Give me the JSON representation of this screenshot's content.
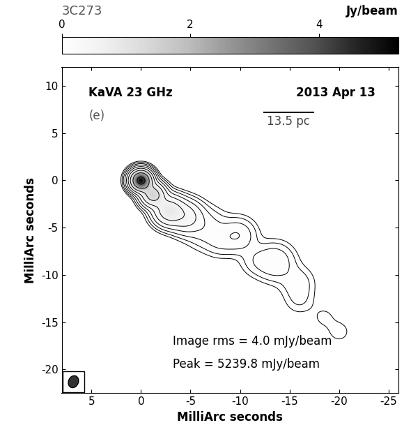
{
  "chart_data": {
    "type": "contour",
    "title": "3C273",
    "colorbar_label": "Jy/beam",
    "clim": [
      0,
      5.2398
    ],
    "cticks": [
      0,
      2,
      4
    ],
    "xlabel": "MilliArc seconds",
    "ylabel": "MilliArc seconds",
    "xlim": [
      8,
      -26
    ],
    "ylim": [
      -22.5,
      12
    ],
    "xticks": [
      5,
      0,
      -5,
      -10,
      -15,
      -20,
      -25
    ],
    "yticks": [
      10,
      5,
      0,
      -5,
      -10,
      -15,
      -20
    ],
    "annotations": [
      "KaVA 23 GHz",
      "(e)",
      "2013 Apr 13",
      "Image rms = 4.0 mJy/beam",
      "Peak = 5239.8 mJy/beam"
    ],
    "scale_bar": {
      "label": "13.5 pc",
      "length": 5
    },
    "beam": {
      "major": 1.3,
      "minor": 1.0,
      "pa": 20
    },
    "contour_levels": [
      0.016,
      0.032,
      0.064,
      0.128,
      0.256,
      0.512,
      1.024,
      2.048,
      4.096
    ],
    "components": [
      {
        "x": 0,
        "y": 0,
        "flux": 5.0,
        "sigma": 0.6
      },
      {
        "x": -1.2,
        "y": -1.5,
        "flux": 1.4,
        "sigma": 0.7
      },
      {
        "x": -2.8,
        "y": -3.2,
        "flux": 0.8,
        "sigma": 0.9
      },
      {
        "x": -4.5,
        "y": -3.8,
        "flux": 0.35,
        "sigma": 1.0
      },
      {
        "x": -6.5,
        "y": -5.0,
        "flux": 0.09,
        "sigma": 1.3
      },
      {
        "x": -8.0,
        "y": -6.5,
        "flux": 0.05,
        "sigma": 1.0
      },
      {
        "x": -9.8,
        "y": -5.8,
        "flux": 0.12,
        "sigma": 1.1
      },
      {
        "x": -11.5,
        "y": -8.5,
        "flux": 0.04,
        "sigma": 1.0
      },
      {
        "x": -13.5,
        "y": -8.6,
        "flux": 0.12,
        "sigma": 1.2
      },
      {
        "x": -15.8,
        "y": -10.8,
        "flux": 0.05,
        "sigma": 1.1
      },
      {
        "x": -16.0,
        "y": -12.7,
        "flux": 0.03,
        "sigma": 1.0
      },
      {
        "x": -18.5,
        "y": -14.5,
        "flux": 0.02,
        "sigma": 0.9
      },
      {
        "x": -20.0,
        "y": -16.0,
        "flux": 0.025,
        "sigma": 0.8
      }
    ],
    "grid": false
  }
}
